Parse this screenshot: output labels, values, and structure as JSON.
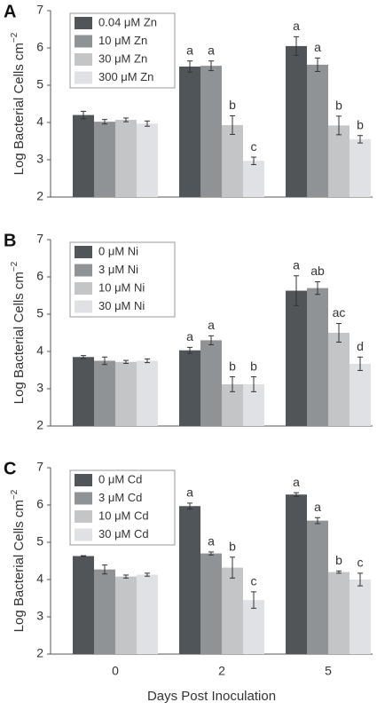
{
  "chart_data": [
    {
      "type": "bar",
      "panel": "A",
      "ylabel": "Log Bacterial Cells cm",
      "ylabel_sup": "−2",
      "legend": "upper left",
      "categories": [
        null,
        null,
        null
      ],
      "ylim": [
        2,
        7
      ],
      "yticks": [
        2,
        3,
        4,
        5,
        6,
        7
      ],
      "series": [
        {
          "name": "0.04 μM Zn",
          "color": "#4f5559",
          "values": [
            4.2,
            5.5,
            6.05
          ],
          "errors": [
            0.1,
            0.15,
            0.25
          ],
          "labels": [
            null,
            "a",
            "a"
          ]
        },
        {
          "name": "10 μM Zn",
          "color": "#8f9396",
          "values": [
            4.02,
            5.52,
            5.55
          ],
          "errors": [
            0.06,
            0.13,
            0.18
          ],
          "labels": [
            null,
            "a",
            "a"
          ]
        },
        {
          "name": "30 μM Zn",
          "color": "#c3c5c7",
          "values": [
            4.07,
            3.93,
            3.92
          ],
          "errors": [
            0.05,
            0.25,
            0.25
          ],
          "labels": [
            null,
            "b",
            "b"
          ]
        },
        {
          "name": "300 μM Zn",
          "color": "#dfe1e4",
          "values": [
            3.97,
            2.97,
            3.55
          ],
          "errors": [
            0.07,
            0.1,
            0.1
          ],
          "labels": [
            null,
            "c",
            "b"
          ]
        }
      ]
    },
    {
      "type": "bar",
      "panel": "B",
      "ylabel": "Log Bacterial Cells cm",
      "ylabel_sup": "−2",
      "legend": "upper left",
      "categories": [
        null,
        null,
        null
      ],
      "ylim": [
        2,
        7
      ],
      "yticks": [
        2,
        3,
        4,
        5,
        6,
        7
      ],
      "series": [
        {
          "name": "0 μM Ni",
          "color": "#4f5559",
          "values": [
            3.85,
            4.03,
            5.63
          ],
          "errors": [
            0.04,
            0.08,
            0.4
          ],
          "labels": [
            null,
            "a",
            "a"
          ]
        },
        {
          "name": "3 μM Ni",
          "color": "#8f9396",
          "values": [
            3.75,
            4.3,
            5.7
          ],
          "errors": [
            0.1,
            0.12,
            0.17
          ],
          "labels": [
            null,
            "a",
            "ab"
          ]
        },
        {
          "name": "10 μM Ni",
          "color": "#c3c5c7",
          "values": [
            3.72,
            3.12,
            4.5
          ],
          "errors": [
            0.04,
            0.2,
            0.25
          ],
          "labels": [
            null,
            "b",
            "ac"
          ]
        },
        {
          "name": "30 μM Ni",
          "color": "#dfe1e4",
          "values": [
            3.75,
            3.12,
            3.67
          ],
          "errors": [
            0.05,
            0.2,
            0.18
          ],
          "labels": [
            null,
            "b",
            "d"
          ]
        }
      ]
    },
    {
      "type": "bar",
      "panel": "C",
      "ylabel": "Log Bacterial Cells cm",
      "ylabel_sup": "−2",
      "legend": "upper left",
      "xlabel": "Days Post Inoculation",
      "categories": [
        "0",
        "2",
        "5"
      ],
      "ylim": [
        2,
        7
      ],
      "yticks": [
        2,
        3,
        4,
        5,
        6,
        7
      ],
      "series": [
        {
          "name": "0 μM Cd",
          "color": "#4f5559",
          "values": [
            4.63,
            5.97,
            6.28
          ],
          "errors": [
            0.01,
            0.08,
            0.05
          ],
          "labels": [
            null,
            "a",
            "a"
          ]
        },
        {
          "name": "3 μM Cd",
          "color": "#8f9396",
          "values": [
            4.27,
            4.7,
            5.58
          ],
          "errors": [
            0.12,
            0.04,
            0.08
          ],
          "labels": [
            null,
            "a",
            "a"
          ]
        },
        {
          "name": "10 μM Cd",
          "color": "#c3c5c7",
          "values": [
            4.08,
            4.32,
            4.2
          ],
          "errors": [
            0.04,
            0.28,
            0.03
          ],
          "labels": [
            null,
            "b",
            "b"
          ]
        },
        {
          "name": "30 μM Cd",
          "color": "#dfe1e4",
          "values": [
            4.13,
            3.45,
            4.0
          ],
          "errors": [
            0.04,
            0.22,
            0.17
          ],
          "labels": [
            null,
            "c",
            "c"
          ]
        }
      ]
    }
  ]
}
